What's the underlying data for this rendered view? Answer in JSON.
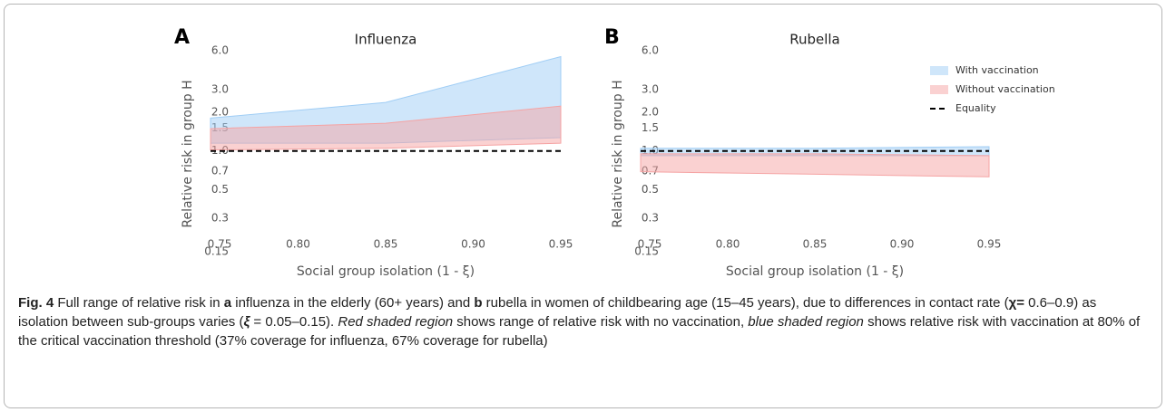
{
  "chart_data": [
    {
      "type": "band",
      "panel_label": "A",
      "title": "Influenza",
      "ylabel": "Relative risk in group H",
      "xlabel": "Social group isolation (1 - ξ)",
      "x": [
        0.75,
        0.85,
        0.95
      ],
      "xlim": [
        0.75,
        0.95
      ],
      "xticks": [
        0.75,
        {
          "value": 0.8,
          "label": "0.80"
        },
        0.85,
        {
          "value": 0.9,
          "label": "0.90"
        },
        0.95
      ],
      "yscale": "log",
      "ylim": [
        0.15,
        6
      ],
      "yticks": [
        0.15,
        0.3,
        0.5,
        0.7,
        {
          "value": 1,
          "label": "1.0"
        },
        1.5,
        {
          "value": 2,
          "label": "2.0"
        },
        {
          "value": 3,
          "label": "3.0"
        },
        {
          "value": 6,
          "label": "6.0"
        }
      ],
      "legend": false,
      "series": [
        {
          "name": "With vaccination",
          "color": "#9fcdf5",
          "low": [
            1.15,
            1.15,
            1.27
          ],
          "high": [
            1.8,
            2.38,
            5.4
          ]
        },
        {
          "name": "Without vaccination",
          "color": "#f5a3a3",
          "low": [
            1.02,
            1.05,
            1.15
          ],
          "high": [
            1.49,
            1.64,
            2.23
          ]
        },
        {
          "name": "Equality",
          "color": "#000000",
          "style": "dashed",
          "values": [
            1,
            1,
            1
          ]
        }
      ]
    },
    {
      "type": "band",
      "panel_label": "B",
      "title": "Rubella",
      "ylabel": "Relative risk in group H",
      "xlabel": "Social group isolation (1 - ξ)",
      "x": [
        0.75,
        0.85,
        0.95
      ],
      "xlim": [
        0.75,
        0.95
      ],
      "xticks": [
        0.75,
        {
          "value": 0.8,
          "label": "0.80"
        },
        0.85,
        {
          "value": 0.9,
          "label": "0.90"
        },
        0.95
      ],
      "yscale": "log",
      "ylim": [
        0.15,
        6
      ],
      "yticks": [
        0.15,
        0.3,
        0.5,
        0.7,
        {
          "value": 1,
          "label": "1.0"
        },
        1.5,
        {
          "value": 2,
          "label": "2.0"
        },
        {
          "value": 3,
          "label": "3.0"
        },
        {
          "value": 6,
          "label": "6.0"
        }
      ],
      "legend": true,
      "legend_position": "upper right",
      "series": [
        {
          "name": "With vaccination",
          "color": "#9fcdf5",
          "low": [
            0.92,
            0.92,
            0.92
          ],
          "high": [
            1.05,
            1.05,
            1.08
          ]
        },
        {
          "name": "Without vaccination",
          "color": "#f5a3a3",
          "low": [
            0.69,
            0.66,
            0.63
          ],
          "high": [
            0.95,
            0.95,
            0.92
          ]
        },
        {
          "name": "Equality",
          "color": "#000000",
          "style": "dashed",
          "values": [
            1,
            1,
            1
          ]
        }
      ]
    }
  ],
  "caption": [
    {
      "text": "Fig. 4",
      "style": "bold"
    },
    {
      "text": " Full range of relative risk in "
    },
    {
      "text": "a",
      "style": "bold"
    },
    {
      "text": " influenza in the elderly (60+ years) and "
    },
    {
      "text": "b",
      "style": "bold"
    },
    {
      "text": " rubella in women of childbearing age (15–45 years), due to differences in contact rate ("
    },
    {
      "text": "χ=",
      "style": "bold"
    },
    {
      "text": " 0.6–0.9) as isolation between sub-groups varies ("
    },
    {
      "text": "ξ",
      "style": "bold italic"
    },
    {
      "text": " = 0.05–0.15). "
    },
    {
      "text": "Red shaded region",
      "style": "italic"
    },
    {
      "text": " shows range of relative risk with no vaccination, "
    },
    {
      "text": "blue shaded region",
      "style": "italic"
    },
    {
      "text": " shows relative risk with vaccination at 80% of the critical vaccination threshold (37% coverage for influenza, 67% coverage for rubella)"
    }
  ]
}
